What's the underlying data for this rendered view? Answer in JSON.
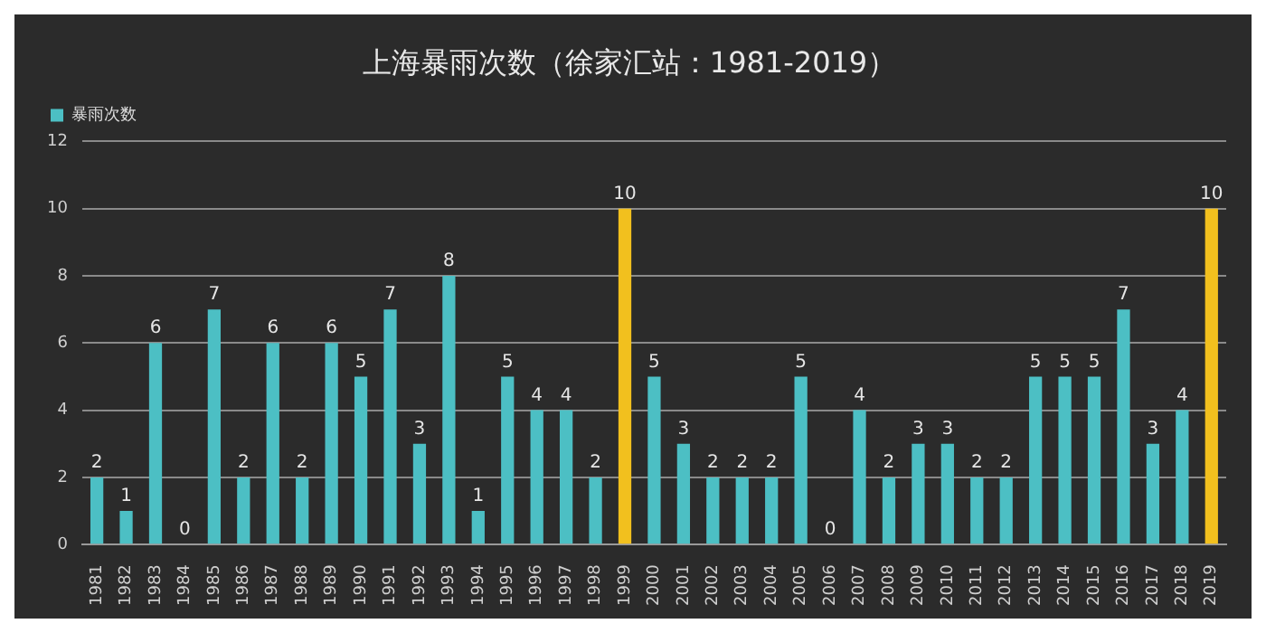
{
  "chart_data": {
    "type": "bar",
    "title": "上海暴雨次数（徐家汇站：1981-2019）",
    "categories": [
      "1981",
      "1982",
      "1983",
      "1984",
      "1985",
      "1986",
      "1987",
      "1988",
      "1989",
      "1990",
      "1991",
      "1992",
      "1993",
      "1994",
      "1995",
      "1996",
      "1997",
      "1998",
      "1999",
      "2000",
      "2001",
      "2002",
      "2003",
      "2004",
      "2005",
      "2006",
      "2007",
      "2008",
      "2009",
      "2010",
      "2011",
      "2012",
      "2013",
      "2014",
      "2015",
      "2016",
      "2017",
      "2018",
      "2019"
    ],
    "series": [
      {
        "name": "暴雨次数",
        "color": "#4cbfc4",
        "colors": [
          "#4cbfc4",
          "#4cbfc4",
          "#4cbfc4",
          "#4cbfc4",
          "#4cbfc4",
          "#4cbfc4",
          "#4cbfc4",
          "#4cbfc4",
          "#4cbfc4",
          "#4cbfc4",
          "#4cbfc4",
          "#4cbfc4",
          "#4cbfc4",
          "#4cbfc4",
          "#4cbfc4",
          "#4cbfc4",
          "#4cbfc4",
          "#4cbfc4",
          "#f2c01e",
          "#4cbfc4",
          "#4cbfc4",
          "#4cbfc4",
          "#4cbfc4",
          "#4cbfc4",
          "#4cbfc4",
          "#4cbfc4",
          "#4cbfc4",
          "#4cbfc4",
          "#4cbfc4",
          "#4cbfc4",
          "#4cbfc4",
          "#4cbfc4",
          "#4cbfc4",
          "#4cbfc4",
          "#4cbfc4",
          "#4cbfc4",
          "#4cbfc4",
          "#4cbfc4",
          "#f2c01e"
        ],
        "values": [
          2,
          1,
          6,
          0,
          7,
          2,
          6,
          2,
          6,
          5,
          7,
          3,
          8,
          1,
          5,
          4,
          4,
          2,
          10,
          5,
          3,
          2,
          2,
          2,
          5,
          0,
          4,
          2,
          3,
          3,
          2,
          2,
          5,
          5,
          5,
          7,
          3,
          4,
          10
        ]
      }
    ],
    "ylim": [
      0,
      12
    ],
    "yticks": [
      0,
      2,
      4,
      6,
      8,
      10,
      12
    ],
    "grid": "y",
    "legend": "top left",
    "data_labels": true
  }
}
